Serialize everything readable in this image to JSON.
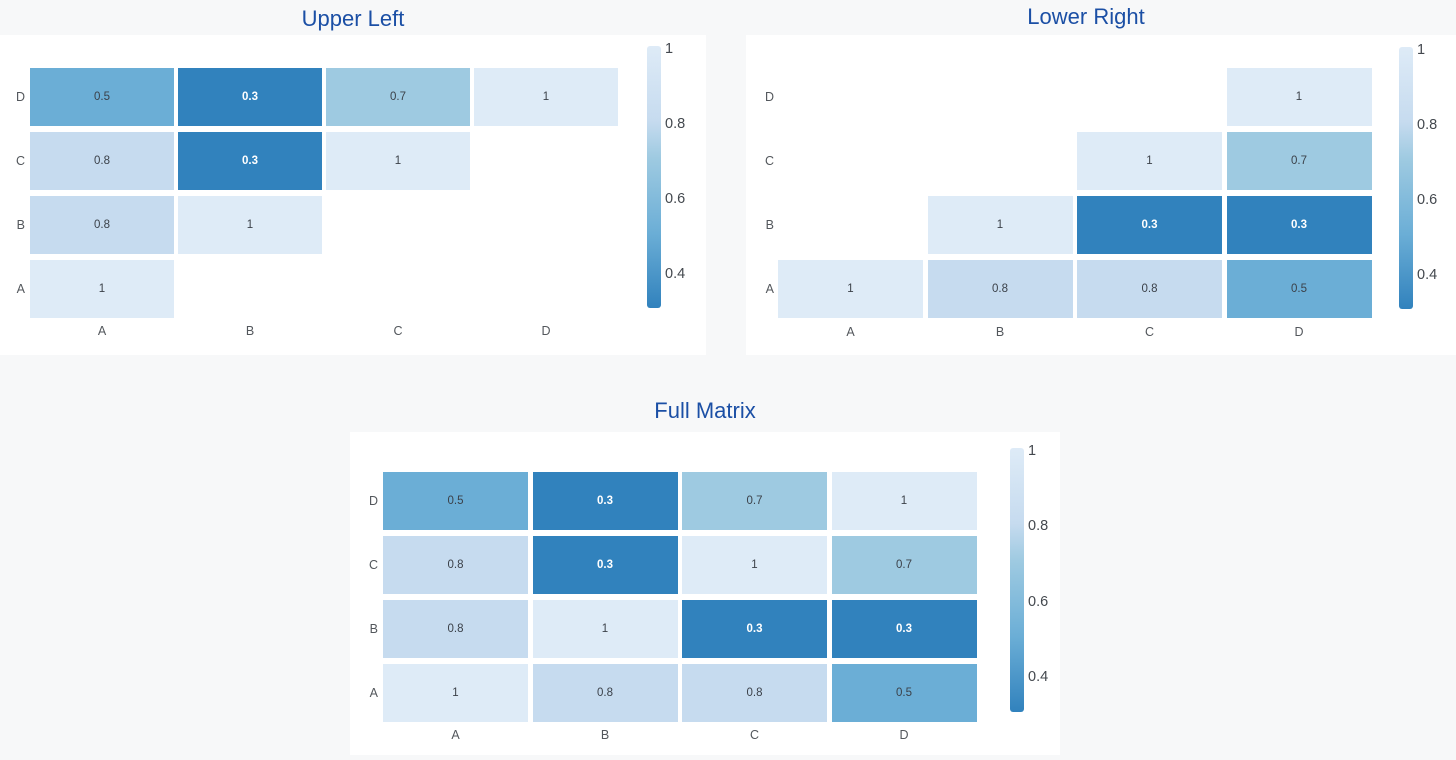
{
  "page": {
    "background_color": "#f7f8f9",
    "card_color": "#ffffff",
    "title_color": "#1b4fa5"
  },
  "colorscale": {
    "name": "blues-reversed-light-high",
    "value_colors": {
      "0.3": "#3182bd",
      "0.5": "#6baed6",
      "0.7": "#9ecae1",
      "0.8": "#c6dbef",
      "1": "#deebf7"
    },
    "white_text_values": [
      0.3
    ],
    "dark_text_color": "#3b4149",
    "light_text_color": "#ffffff",
    "gradient_top": "#deebf7",
    "gradient_bottom": "#3182bd"
  },
  "charts": [
    {
      "title": "Upper Left",
      "x_labels": [
        "A",
        "B",
        "C",
        "D"
      ],
      "y_labels": [
        "D",
        "C",
        "B",
        "A"
      ],
      "rows": [
        [
          0.5,
          0.3,
          0.7,
          1
        ],
        [
          0.8,
          0.3,
          1,
          null
        ],
        [
          0.8,
          1,
          null,
          null
        ],
        [
          1,
          null,
          null,
          null
        ]
      ],
      "colorbar_ticks": [
        "1",
        "0.8",
        "0.6",
        "0.4"
      ]
    },
    {
      "title": "Lower Right",
      "x_labels": [
        "A",
        "B",
        "C",
        "D"
      ],
      "y_labels": [
        "D",
        "C",
        "B",
        "A"
      ],
      "rows": [
        [
          null,
          null,
          null,
          1
        ],
        [
          null,
          null,
          1,
          0.7
        ],
        [
          null,
          1,
          0.3,
          0.3
        ],
        [
          1,
          0.8,
          0.8,
          0.5
        ]
      ],
      "colorbar_ticks": [
        "1",
        "0.8",
        "0.6",
        "0.4"
      ]
    },
    {
      "title": "Full Matrix",
      "x_labels": [
        "A",
        "B",
        "C",
        "D"
      ],
      "y_labels": [
        "D",
        "C",
        "B",
        "A"
      ],
      "rows": [
        [
          0.5,
          0.3,
          0.7,
          1
        ],
        [
          0.8,
          0.3,
          1,
          0.7
        ],
        [
          0.8,
          1,
          0.3,
          0.3
        ],
        [
          1,
          0.8,
          0.8,
          0.5
        ]
      ],
      "colorbar_ticks": [
        "1",
        "0.8",
        "0.6",
        "0.4"
      ]
    }
  ],
  "chart_data": [
    {
      "type": "heatmap",
      "title": "Upper Left",
      "x": [
        "A",
        "B",
        "C",
        "D"
      ],
      "y": [
        "A",
        "B",
        "C",
        "D"
      ],
      "z_rows_bottom_to_top": [
        [
          1,
          null,
          null,
          null
        ],
        [
          0.8,
          1,
          null,
          null
        ],
        [
          0.8,
          0.3,
          1,
          null
        ],
        [
          0.5,
          0.3,
          0.7,
          1
        ]
      ],
      "zmin": 0.3,
      "zmax": 1,
      "colorscale": "Blues reversed (1 = light, 0.3 = dark)",
      "colorbar_ticks": [
        1,
        0.8,
        0.6,
        0.4
      ],
      "colorbar_position": "right",
      "cell_labels_shown": true,
      "grid": false
    },
    {
      "type": "heatmap",
      "title": "Lower Right",
      "x": [
        "A",
        "B",
        "C",
        "D"
      ],
      "y": [
        "A",
        "B",
        "C",
        "D"
      ],
      "z_rows_bottom_to_top": [
        [
          1,
          0.8,
          0.8,
          0.5
        ],
        [
          null,
          1,
          0.3,
          0.3
        ],
        [
          null,
          null,
          1,
          0.7
        ],
        [
          null,
          null,
          null,
          1
        ]
      ],
      "zmin": 0.3,
      "zmax": 1,
      "colorscale": "Blues reversed (1 = light, 0.3 = dark)",
      "colorbar_ticks": [
        1,
        0.8,
        0.6,
        0.4
      ],
      "colorbar_position": "right",
      "cell_labels_shown": true,
      "grid": false
    },
    {
      "type": "heatmap",
      "title": "Full Matrix",
      "x": [
        "A",
        "B",
        "C",
        "D"
      ],
      "y": [
        "A",
        "B",
        "C",
        "D"
      ],
      "z_rows_bottom_to_top": [
        [
          1,
          0.8,
          0.8,
          0.5
        ],
        [
          0.8,
          1,
          0.3,
          0.3
        ],
        [
          0.8,
          0.3,
          1,
          0.7
        ],
        [
          0.5,
          0.3,
          0.7,
          1
        ]
      ],
      "zmin": 0.3,
      "zmax": 1,
      "colorscale": "Blues reversed (1 = light, 0.3 = dark)",
      "colorbar_ticks": [
        1,
        0.8,
        0.6,
        0.4
      ],
      "colorbar_position": "right",
      "cell_labels_shown": true,
      "grid": false
    }
  ]
}
